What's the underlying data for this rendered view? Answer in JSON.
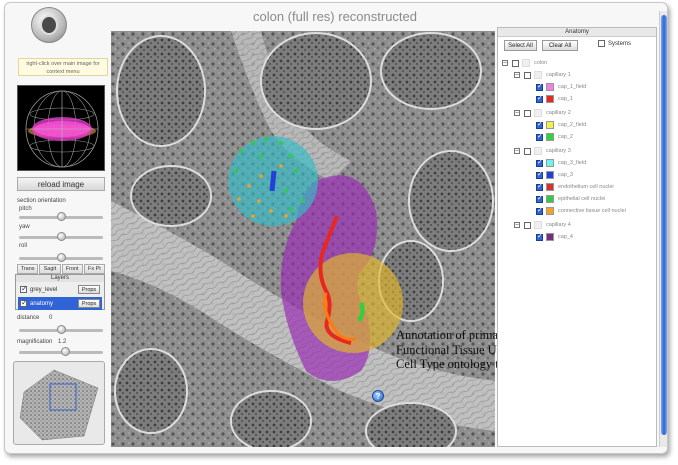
{
  "app": {
    "title": "colon (full res) reconstructed"
  },
  "left_panel": {
    "hint": "right-click over main image for context menu",
    "reload_label": "reload image",
    "section_orientation_label": "section orientation",
    "pitch_label": "pitch",
    "yaw_label": "yaw",
    "roll_label": "roll",
    "view_buttons": [
      "Trans",
      "Sagit",
      "Front",
      "Fx Pt"
    ],
    "layers": {
      "header": "Layers",
      "items": [
        {
          "name": "grey_level",
          "props": "Props",
          "checked": true,
          "selected": false
        },
        {
          "name": "anatomy",
          "props": "Props",
          "checked": true,
          "selected": true
        }
      ]
    },
    "distance_label": "distance",
    "distance_value": "0",
    "magnification_label": "magnification",
    "magnification_value": "1.2",
    "sliders": {
      "pitch": 0.5,
      "yaw": 0.5,
      "roll": 0.5,
      "distance": 0.5,
      "magnification": 0.55
    }
  },
  "anatomy": {
    "header": "Anatomy",
    "select_all": "Select All",
    "clear_all": "Clear All",
    "systems_label": "Systems",
    "tree": [
      {
        "label": "colon",
        "expander": "-",
        "checked": false,
        "color": ""
      },
      {
        "label": "capillary 1",
        "expander": "-",
        "checked": false,
        "color": ""
      },
      {
        "label": "cap_1_field",
        "expander": "",
        "checked": true,
        "color": "#f27ee8"
      },
      {
        "label": "cap_1",
        "expander": "",
        "checked": true,
        "color": "#e8271f"
      },
      {
        "label": "capillary 2",
        "expander": "-",
        "checked": false,
        "color": ""
      },
      {
        "label": "cap_2_field",
        "expander": "",
        "checked": true,
        "color": "#f5ef4a"
      },
      {
        "label": "cap_2",
        "expander": "",
        "checked": true,
        "color": "#2ad43b"
      },
      {
        "label": "capillary 3",
        "expander": "-",
        "checked": false,
        "color": ""
      },
      {
        "label": "cap_3_field",
        "expander": "",
        "checked": true,
        "color": "#6ef3f2"
      },
      {
        "label": "cap_3",
        "expander": "",
        "checked": true,
        "color": "#2340d6"
      },
      {
        "label": "endothelium cell nuclei",
        "expander": "",
        "checked": true,
        "color": "#d92f2f"
      },
      {
        "label": "epithelial cell nuclei",
        "expander": "",
        "checked": true,
        "color": "#35c94a"
      },
      {
        "label": "connective tissue cell nuclei",
        "expander": "",
        "checked": true,
        "color": "#f7a021"
      },
      {
        "label": "capillary 4",
        "expander": "-",
        "checked": false,
        "color": ""
      },
      {
        "label": "cap_4",
        "expander": "",
        "checked": true,
        "color": "#7a2c80"
      }
    ]
  },
  "caption": "Annotation of primary Functional Tissue Units with Cell Type ontology terms",
  "help_label": "?"
}
